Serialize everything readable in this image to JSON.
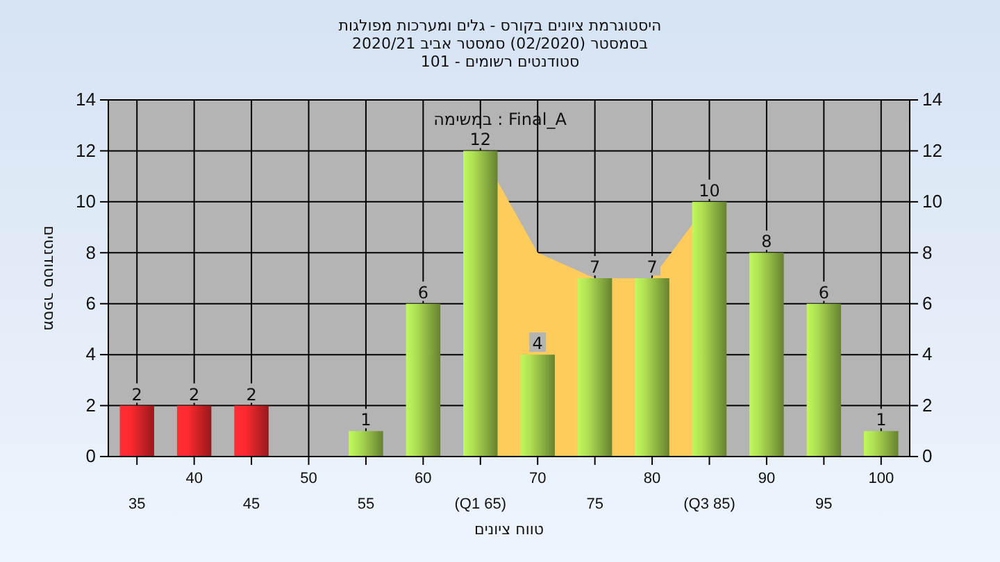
{
  "chart_data": {
    "type": "bar",
    "title": "היסטוגרמת ציונים בקורס - גלים ומערכות מפולגות",
    "subtitle": "בסמסטר  (02/2020)  סמסטר אביב 2020/21\nסטודנטים רשומים - 101",
    "xlabel": "טווח ציונים",
    "ylabel": "מספר סטודנטים",
    "annotations": [
      "במשימה : Final_A"
    ],
    "categories": [
      "35",
      "40",
      "45",
      "50",
      "55",
      "60",
      "(Q1 65)",
      "70",
      "75",
      "80",
      "(Q3 85)",
      "90",
      "95",
      "100"
    ],
    "series": [
      {
        "type": "area",
        "color": "#ffcc5c",
        "values": [
          null,
          null,
          null,
          null,
          null,
          null,
          12,
          8,
          7,
          7,
          10,
          null,
          null,
          null
        ]
      },
      {
        "colors": [
          "#e8262b",
          "#e8262b",
          "#e8262b",
          "#9cc84a",
          "#9cc84a",
          "#9cc84a",
          "#9cc84a",
          "#9cc84a",
          "#9cc84a",
          "#9cc84a",
          "#9cc84a",
          "#9cc84a",
          "#9cc84a",
          "#9cc84a"
        ],
        "values": [
          2,
          2,
          2,
          0,
          1,
          6,
          12,
          4,
          7,
          7,
          10,
          8,
          6,
          1
        ],
        "value_labels": [
          "2",
          "2",
          "2",
          null,
          "1",
          "6",
          "12",
          "4",
          "7",
          "7",
          "10",
          "8",
          "6",
          "1"
        ]
      }
    ],
    "ylim": [
      0,
      14
    ],
    "yticks": [
      0,
      2,
      4,
      6,
      8,
      10,
      12,
      14
    ],
    "y2lim": [
      0,
      14
    ],
    "y2ticks": [
      0,
      2,
      4,
      6,
      8,
      10,
      12,
      14
    ],
    "grid": true
  }
}
